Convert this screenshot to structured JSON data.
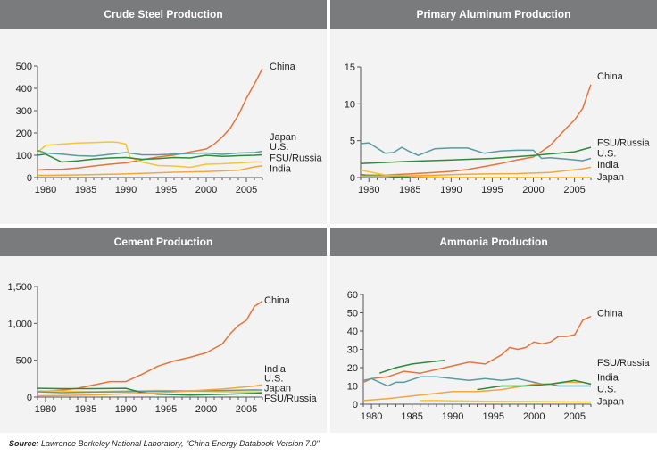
{
  "source": {
    "label": "Source:",
    "text": "Lawrence Berkeley National Laboratory, \"China Energy Databook Version 7.0\""
  },
  "colors": {
    "China": "#e8743a",
    "Japan": "#f7c531",
    "U.S.": "#5a9aa0",
    "FSU/Russia": "#2f8a3a",
    "India": "#f5a63a",
    "header_bg": "#7a7b7c",
    "panel_bg": "#f2f3f2"
  },
  "chart_data": [
    {
      "id": "steel",
      "type": "line",
      "title": "Crude Steel Production",
      "xlim": [
        1979,
        2007
      ],
      "ylim": [
        0,
        500
      ],
      "xticks": [
        1980,
        1985,
        1990,
        1995,
        2000,
        2005
      ],
      "yticks": [
        0,
        100,
        200,
        300,
        400,
        500
      ],
      "ytick_labels": [
        "0",
        "100",
        "200",
        "300",
        "400",
        "500"
      ],
      "series": [
        {
          "name": "China",
          "x": [
            1979,
            1980,
            1982,
            1984,
            1986,
            1988,
            1990,
            1992,
            1994,
            1996,
            1998,
            2000,
            2001,
            2002,
            2003,
            2004,
            2005,
            2006,
            2007
          ],
          "y": [
            34,
            37,
            37,
            43,
            52,
            60,
            66,
            80,
            92,
            101,
            115,
            128,
            150,
            182,
            222,
            280,
            355,
            420,
            489
          ]
        },
        {
          "name": "Japan",
          "x": [
            1979,
            1980,
            1982,
            1984,
            1986,
            1988,
            1989,
            1990,
            1990.5,
            1992,
            1994,
            1996,
            1998,
            2000,
            2002,
            2004,
            2006,
            2007
          ],
          "y": [
            112,
            145,
            150,
            155,
            157,
            160,
            158,
            150,
            92,
            70,
            54,
            52,
            46,
            60,
            62,
            66,
            70,
            70
          ]
        },
        {
          "name": "U.S.",
          "x": [
            1979,
            1980,
            1982,
            1984,
            1986,
            1988,
            1990,
            1992,
            1994,
            1996,
            1998,
            2000,
            2002,
            2004,
            2006,
            2007
          ],
          "y": [
            122,
            110,
            105,
            98,
            96,
            104,
            112,
            102,
            102,
            105,
            108,
            110,
            104,
            110,
            112,
            118
          ]
        },
        {
          "name": "FSU/Russia",
          "x": [
            1979,
            1980,
            1982,
            1984,
            1986,
            1988,
            1990,
            1992,
            1994,
            1996,
            1998,
            2000,
            2002,
            2004,
            2006,
            2007
          ],
          "y": [
            100,
            105,
            70,
            75,
            83,
            88,
            90,
            82,
            85,
            90,
            88,
            100,
            95,
            98,
            100,
            102
          ]
        },
        {
          "name": "India",
          "x": [
            1979,
            1980,
            1984,
            1988,
            1992,
            1996,
            2000,
            2002,
            2004,
            2006,
            2007
          ],
          "y": [
            10,
            10,
            12,
            15,
            19,
            24,
            27,
            30,
            33,
            48,
            53
          ]
        }
      ],
      "labels": [
        {
          "text": "China",
          "y": 500
        },
        {
          "text": "Japan",
          "y": 185
        },
        {
          "text": "U.S.",
          "y": 140
        },
        {
          "text": "FSU/Russia",
          "y": 90
        },
        {
          "text": "India",
          "y": 42
        }
      ]
    },
    {
      "id": "aluminum",
      "type": "line",
      "title": "Primary Aluminum Production",
      "xlim": [
        1979,
        2007
      ],
      "ylim": [
        0,
        15
      ],
      "xticks": [
        1980,
        1985,
        1990,
        1995,
        2000,
        2005
      ],
      "yticks": [
        0,
        5,
        10,
        15
      ],
      "ytick_labels": [
        "0",
        "5",
        "10",
        "15"
      ],
      "series": [
        {
          "name": "China",
          "x": [
            1979,
            1982,
            1985,
            1988,
            1990,
            1992,
            1994,
            1996,
            1998,
            2000,
            2002,
            2004,
            2005,
            2006,
            2007
          ],
          "y": [
            0.3,
            0.35,
            0.5,
            0.7,
            0.85,
            1.1,
            1.5,
            1.9,
            2.4,
            2.8,
            4.3,
            6.7,
            7.8,
            9.4,
            12.6
          ]
        },
        {
          "name": "Japan",
          "x": [
            1979,
            1980,
            1982,
            1984,
            1986,
            1990,
            1994,
            1998,
            2002,
            2007
          ],
          "y": [
            1.0,
            0.8,
            0.35,
            0.25,
            0.12,
            0.05,
            0.03,
            0.03,
            0.01,
            0.01
          ]
        },
        {
          "name": "U.S.",
          "x": [
            1979,
            1980,
            1982,
            1983,
            1984,
            1985,
            1986,
            1988,
            1990,
            1992,
            1994,
            1996,
            1998,
            2000,
            2001,
            2002,
            2004,
            2006,
            2007
          ],
          "y": [
            4.6,
            4.7,
            3.3,
            3.4,
            4.1,
            3.5,
            3.0,
            3.9,
            4.0,
            4.0,
            3.3,
            3.6,
            3.7,
            3.7,
            2.6,
            2.7,
            2.5,
            2.3,
            2.6
          ]
        },
        {
          "name": "FSU/Russia",
          "x": [
            1979,
            1980,
            1981,
            1982,
            1983,
            1984,
            1985
          ],
          "y": [
            0.4,
            0.3,
            0.25,
            0.2,
            0.15,
            0.1,
            0.05
          ]
        },
        {
          "name": "India",
          "x": [
            1979,
            1982,
            1986,
            1990,
            1994,
            1998,
            2002,
            2006,
            2007
          ],
          "y": [
            0.2,
            0.2,
            0.25,
            0.4,
            0.5,
            0.55,
            0.7,
            1.2,
            1.4
          ]
        }
      ],
      "segments": [
        {
          "name": "FSU/Russia",
          "x": [
            1979,
            1985,
            1990,
            1995,
            2000,
            2005,
            2007
          ],
          "y": [
            1.9,
            2.2,
            2.4,
            2.6,
            3.0,
            3.5,
            4.1
          ]
        }
      ],
      "labels": [
        {
          "text": "China",
          "y": 13.8
        },
        {
          "text": "FSU/Russia",
          "y": 4.8
        },
        {
          "text": "U.S.",
          "y": 3.3
        },
        {
          "text": "India",
          "y": 1.8
        },
        {
          "text": "Japan",
          "y": 0.1
        }
      ]
    },
    {
      "id": "cement",
      "type": "line",
      "title": "Cement Production",
      "xlim": [
        1979,
        2007
      ],
      "ylim": [
        0,
        1500
      ],
      "xticks": [
        1980,
        1985,
        1990,
        1995,
        2000,
        2005
      ],
      "yticks": [
        0,
        500,
        1000,
        1500
      ],
      "ytick_labels": [
        "0",
        "500",
        "1,000",
        "1,500"
      ],
      "series": [
        {
          "name": "China",
          "x": [
            1979,
            1980,
            1982,
            1984,
            1986,
            1988,
            1990,
            1992,
            1994,
            1996,
            1998,
            2000,
            2002,
            2003,
            2004,
            2005,
            2006,
            2007
          ],
          "y": [
            74,
            80,
            95,
            120,
            165,
            210,
            210,
            310,
            420,
            490,
            540,
            600,
            720,
            860,
            970,
            1040,
            1230,
            1300
          ]
        },
        {
          "name": "Japan",
          "x": [
            1979,
            1982,
            1986,
            1990,
            1994,
            1998,
            2002,
            2006,
            2007
          ],
          "y": [
            86,
            82,
            72,
            85,
            91,
            82,
            72,
            70,
            68
          ]
        },
        {
          "name": "U.S.",
          "x": [
            1979,
            1982,
            1986,
            1990,
            1994,
            1998,
            2002,
            2006,
            2007
          ],
          "y": [
            72,
            60,
            70,
            72,
            80,
            85,
            90,
            98,
            96
          ]
        },
        {
          "name": "FSU/Russia",
          "x": [
            1979,
            1982,
            1986,
            1990,
            1992,
            1994,
            1998,
            2002,
            2006,
            2007
          ],
          "y": [
            120,
            115,
            115,
            120,
            60,
            40,
            28,
            38,
            52,
            58
          ]
        },
        {
          "name": "India",
          "x": [
            1979,
            1982,
            1986,
            1990,
            1994,
            1998,
            2002,
            2004,
            2006,
            2007
          ],
          "y": [
            18,
            22,
            30,
            45,
            57,
            85,
            110,
            130,
            150,
            168
          ]
        }
      ],
      "labels": [
        {
          "text": "China",
          "y": 1320
        },
        {
          "text": "India",
          "y": 390
        },
        {
          "text": "U.S.",
          "y": 260
        },
        {
          "text": "Japan",
          "y": 125
        },
        {
          "text": "FSU/Russia",
          "y": -10
        }
      ]
    },
    {
      "id": "ammonia",
      "type": "line",
      "title": "Ammonia Production",
      "xlim": [
        1979,
        2007
      ],
      "ylim": [
        0,
        60
      ],
      "xticks": [
        1980,
        1985,
        1990,
        1995,
        2000,
        2005
      ],
      "yticks": [
        0,
        10,
        20,
        30,
        40,
        50,
        60
      ],
      "ytick_labels": [
        "0",
        "10",
        "20",
        "30",
        "40",
        "50",
        "60"
      ],
      "series": [
        {
          "name": "China",
          "x": [
            1979,
            1980,
            1982,
            1984,
            1986,
            1988,
            1990,
            1992,
            1994,
            1996,
            1997,
            1998,
            1999,
            2000,
            2001,
            2002,
            2003,
            2004,
            2005,
            2006,
            2007
          ],
          "y": [
            12,
            14,
            15,
            18,
            17,
            19,
            21,
            23,
            22,
            27,
            31,
            30,
            31,
            34,
            33,
            34,
            37,
            37,
            38,
            46,
            48
          ]
        },
        {
          "name": "Japan",
          "x": [
            1986,
            1988,
            1990,
            1994,
            1998,
            2002,
            2006,
            2007
          ],
          "y": [
            2,
            2,
            1.8,
            1.6,
            1.5,
            1.4,
            1.2,
            1.2
          ]
        },
        {
          "name": "U.S.",
          "x": [
            1979,
            1980,
            1982,
            1983,
            1984,
            1986,
            1988,
            1990,
            1992,
            1994,
            1996,
            1998,
            2000,
            2001,
            2002,
            2003,
            2004,
            2006,
            2007
          ],
          "y": [
            13,
            14,
            10,
            12,
            12,
            15,
            15,
            14,
            13,
            14,
            13,
            14,
            12,
            11,
            11,
            10,
            10,
            10,
            10
          ]
        },
        {
          "name": "India",
          "x": [
            1979,
            1982,
            1986,
            1990,
            1993,
            1996,
            2000,
            2002,
            2004,
            2006,
            2007
          ],
          "y": [
            2,
            3,
            5,
            7,
            7,
            8,
            11,
            11,
            12,
            12,
            11
          ]
        }
      ],
      "segments": [
        {
          "name": "FSU/Russia",
          "x": [
            1981,
            1983,
            1985,
            1987,
            1989
          ],
          "y": [
            17,
            20,
            22,
            23,
            24
          ]
        },
        {
          "name": "FSU/Russia",
          "x": [
            1993,
            1996,
            1999,
            2002,
            2005,
            2007
          ],
          "y": [
            8,
            10,
            10,
            11,
            13,
            11
          ]
        }
      ],
      "labels": [
        {
          "text": "China",
          "y": 50
        },
        {
          "text": "FSU/Russia",
          "y": 23
        },
        {
          "text": "India",
          "y": 15
        },
        {
          "text": "U.S.",
          "y": 8.5
        },
        {
          "text": "Japan",
          "y": 1.6
        }
      ]
    }
  ]
}
